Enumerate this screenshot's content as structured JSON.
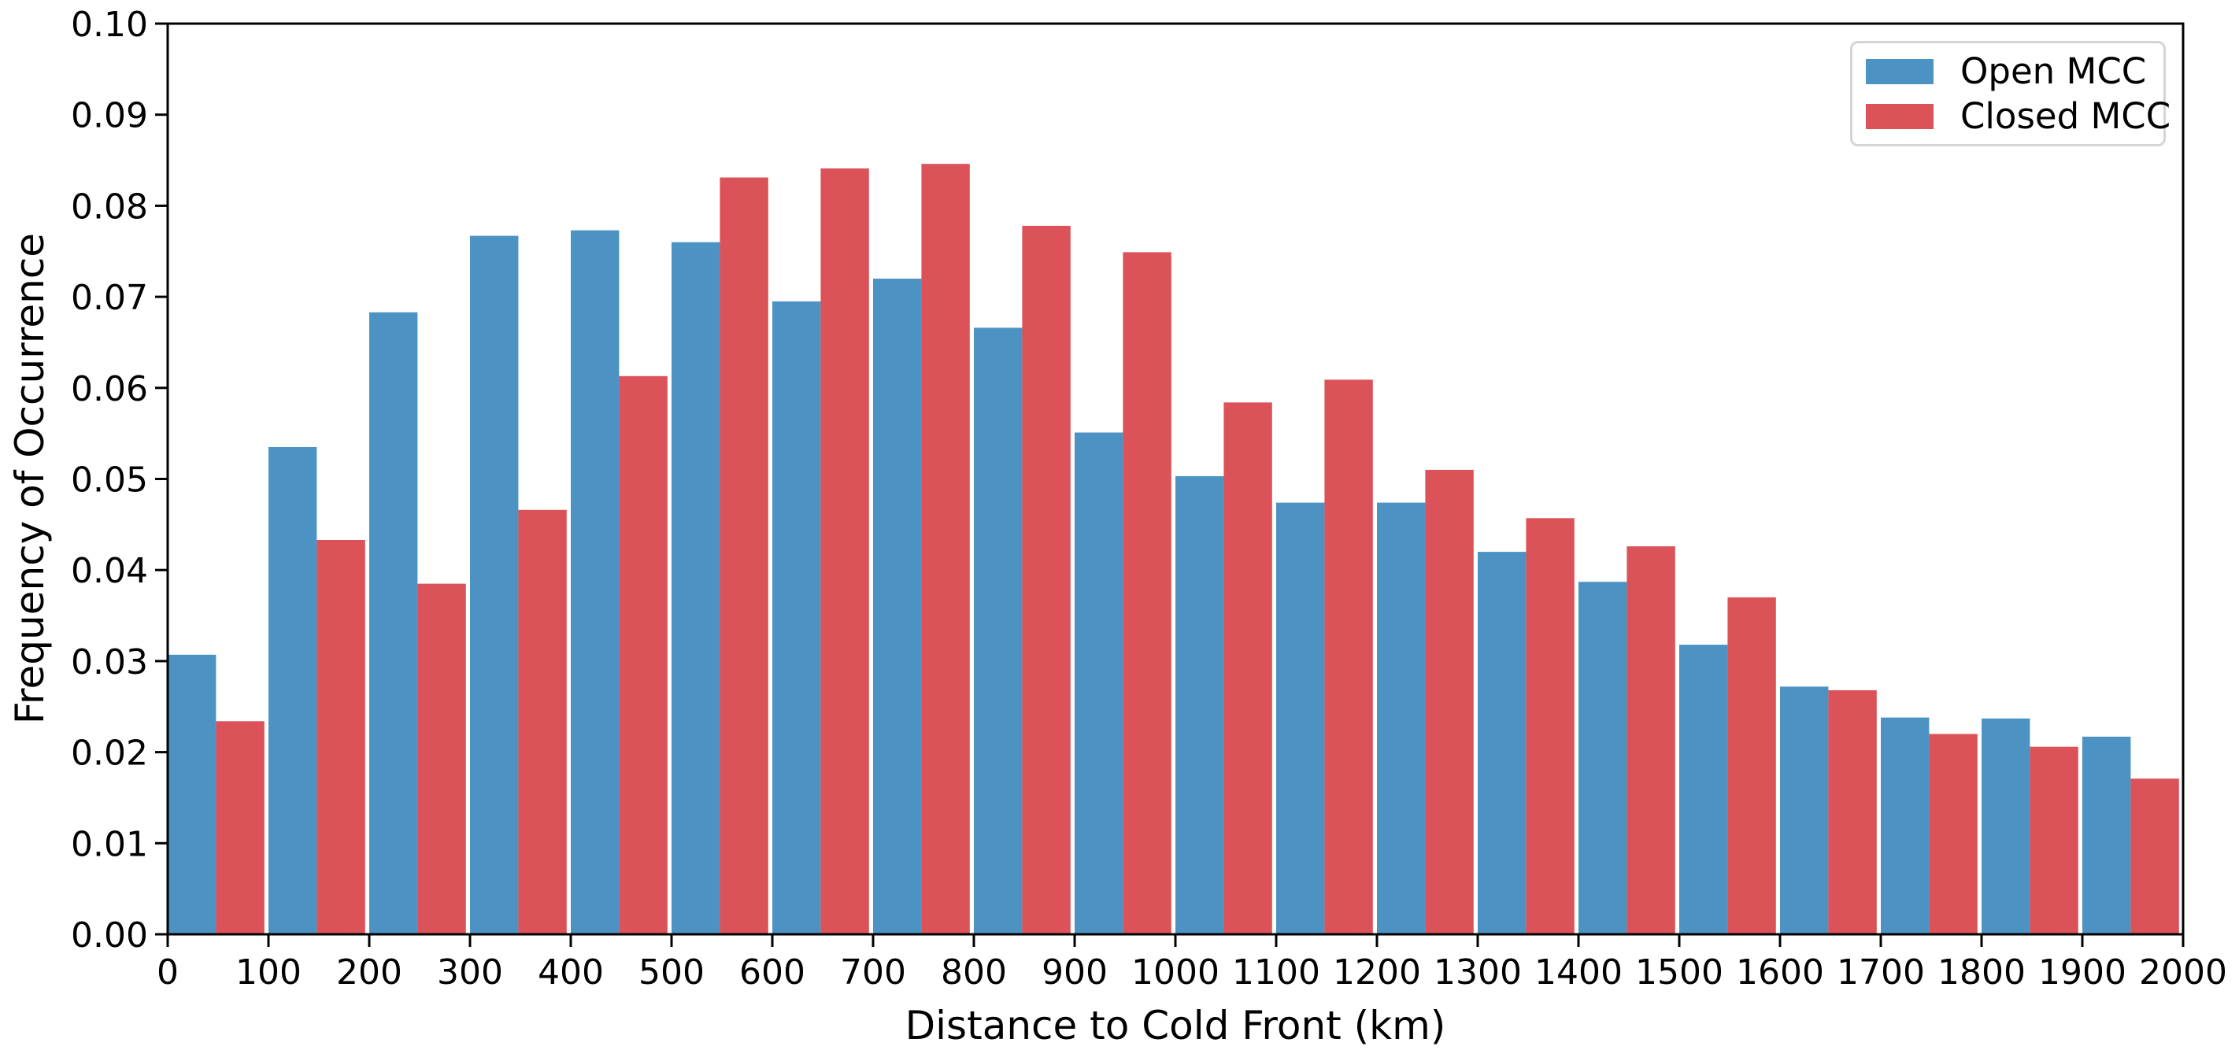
{
  "chart_data": {
    "type": "bar",
    "title": "",
    "xlabel": "Distance to Cold Front (km)",
    "ylabel": "Frequency of Occurrence",
    "grid": false,
    "legend_position": "upper right",
    "x_range": [
      0,
      2000
    ],
    "ylim": [
      0.0,
      0.1
    ],
    "bin_width_km": 100,
    "x_ticks": [
      0,
      100,
      200,
      300,
      400,
      500,
      600,
      700,
      800,
      900,
      1000,
      1100,
      1200,
      1300,
      1400,
      1500,
      1600,
      1700,
      1800,
      1900,
      2000
    ],
    "y_ticks": [
      0.0,
      0.01,
      0.02,
      0.03,
      0.04,
      0.05,
      0.06,
      0.07,
      0.08,
      0.09,
      0.1
    ],
    "categories": [
      "0-100",
      "100-200",
      "200-300",
      "300-400",
      "400-500",
      "500-600",
      "600-700",
      "700-800",
      "800-900",
      "900-1000",
      "1000-1100",
      "1100-1200",
      "1200-1300",
      "1300-1400",
      "1400-1500",
      "1500-1600",
      "1600-1700",
      "1700-1800",
      "1800-1900",
      "1900-2000"
    ],
    "series": [
      {
        "name": "Open MCC",
        "color": "#4C93C4",
        "values": [
          0.0307,
          0.0535,
          0.0683,
          0.0767,
          0.0773,
          0.076,
          0.0695,
          0.072,
          0.0666,
          0.0551,
          0.0503,
          0.0474,
          0.0474,
          0.042,
          0.0387,
          0.0318,
          0.0272,
          0.0238,
          0.0237,
          0.0217
        ]
      },
      {
        "name": "Closed MCC",
        "color": "#DB5358",
        "values": [
          0.0234,
          0.0433,
          0.0385,
          0.0466,
          0.0613,
          0.0831,
          0.0841,
          0.0846,
          0.0778,
          0.0749,
          0.0584,
          0.0609,
          0.051,
          0.0457,
          0.0426,
          0.037,
          0.0268,
          0.022,
          0.0206,
          0.0171
        ]
      }
    ],
    "axis_color": "#000000",
    "tick_label_format_y_decimals": 2
  }
}
